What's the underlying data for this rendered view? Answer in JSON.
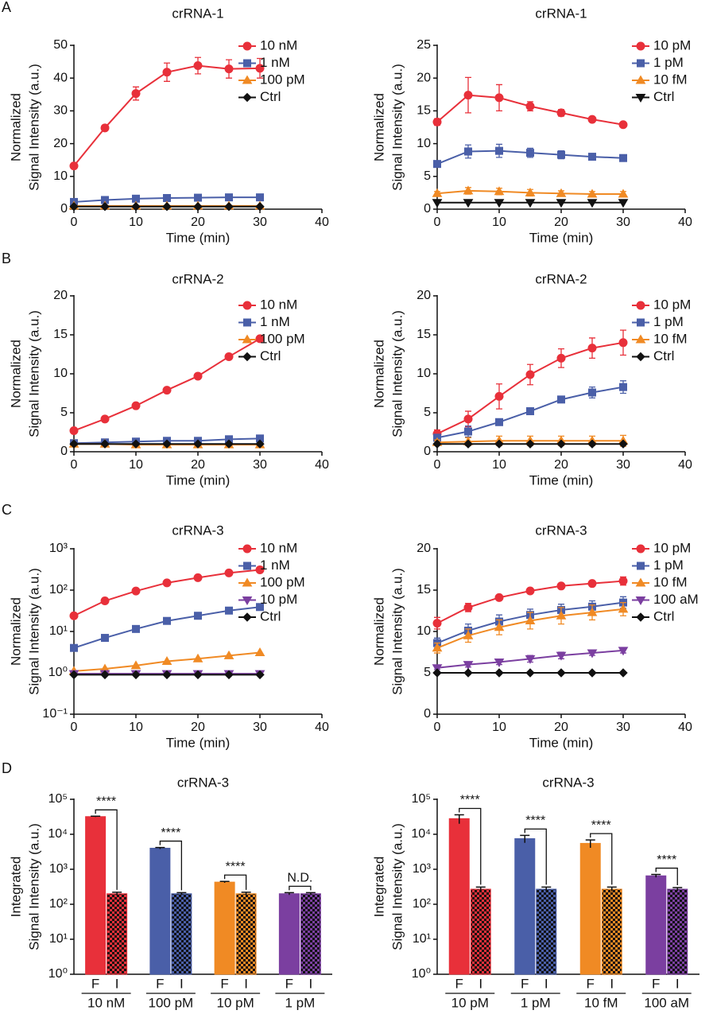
{
  "chart_data": [
    {
      "panel": "A",
      "type": "line",
      "title": "crRNA-1",
      "ylabel": [
        "Normalized",
        "Signal Intensity (a.u.)"
      ],
      "xlabel": "Time (min)",
      "x": [
        0,
        5,
        10,
        15,
        20,
        25,
        30
      ],
      "xlim": [
        0,
        40
      ],
      "xticks": [
        0,
        10,
        20,
        30,
        40
      ],
      "ylim": [
        0,
        50
      ],
      "yticks": [
        0,
        10,
        20,
        30,
        40,
        50
      ],
      "legend": "upper right",
      "series": [
        {
          "name": "10 nM",
          "color": "#e8303a",
          "marker": "circle",
          "values": [
            13.2,
            24.8,
            35.3,
            41.8,
            43.8,
            42.8,
            43.0
          ],
          "errors": [
            0.5,
            0.5,
            2,
            2.8,
            2.5,
            2.8,
            3
          ]
        },
        {
          "name": "1 nM",
          "color": "#4a5fa8",
          "marker": "square",
          "values": [
            2.2,
            2.8,
            3.2,
            3.4,
            3.5,
            3.6,
            3.6
          ]
        },
        {
          "name": "100 pM",
          "color": "#f08a24",
          "marker": "triangle",
          "values": [
            1.0,
            1.0,
            1.0,
            1.0,
            1.0,
            1.0,
            1.0
          ]
        },
        {
          "name": "Ctrl",
          "color": "#111111",
          "marker": "diamond",
          "values": [
            0.8,
            0.8,
            0.8,
            0.8,
            0.8,
            0.8,
            0.8
          ]
        }
      ]
    },
    {
      "type": "line",
      "title": "crRNA-1",
      "ylabel": [
        "Normalized",
        "Signal Intensity (a.u.)"
      ],
      "xlabel": "Time (min)",
      "x": [
        0,
        5,
        10,
        15,
        20,
        25,
        30
      ],
      "xlim": [
        0,
        40
      ],
      "xticks": [
        0,
        10,
        20,
        30,
        40
      ],
      "ylim": [
        0,
        25
      ],
      "yticks": [
        0,
        5,
        10,
        15,
        20,
        25
      ],
      "legend": "upper right",
      "series": [
        {
          "name": "10 pM",
          "color": "#e8303a",
          "marker": "circle",
          "values": [
            13.3,
            17.4,
            17.0,
            15.7,
            14.7,
            13.7,
            12.9
          ],
          "errors": [
            0.5,
            2.7,
            2,
            0.7,
            0.5,
            0.3,
            0.3
          ]
        },
        {
          "name": "1 pM",
          "color": "#4a5fa8",
          "marker": "square",
          "values": [
            6.9,
            8.8,
            8.9,
            8.6,
            8.3,
            8.0,
            7.8
          ],
          "errors": [
            0.3,
            1,
            1,
            0.7,
            0.6,
            0.4,
            0.4
          ]
        },
        {
          "name": "10 fM",
          "color": "#f08a24",
          "marker": "triangle",
          "values": [
            2.4,
            2.8,
            2.7,
            2.5,
            2.4,
            2.3,
            2.3
          ],
          "errors": [
            0.3,
            0.5,
            0.5,
            0.5,
            0.4,
            0.4,
            0.4
          ]
        },
        {
          "name": "Ctrl",
          "color": "#111111",
          "marker": "triangle-down",
          "values": [
            1.0,
            1.0,
            1.0,
            1.0,
            1.0,
            1.0,
            1.0
          ]
        }
      ]
    },
    {
      "panel": "B",
      "type": "line",
      "title": "crRNA-2",
      "ylabel": [
        "Normalized",
        "Signal Intensity (a.u.)"
      ],
      "xlabel": "Time (min)",
      "x": [
        0,
        5,
        10,
        15,
        20,
        25,
        30
      ],
      "xlim": [
        0,
        40
      ],
      "xticks": [
        0,
        10,
        20,
        30,
        40
      ],
      "ylim": [
        0,
        20
      ],
      "yticks": [
        0,
        5,
        10,
        15,
        20
      ],
      "legend": "upper right",
      "series": [
        {
          "name": "10 nM",
          "color": "#e8303a",
          "marker": "circle",
          "values": [
            2.7,
            4.2,
            5.9,
            7.9,
            9.7,
            12.2,
            14.5
          ]
        },
        {
          "name": "1 nM",
          "color": "#4a5fa8",
          "marker": "square",
          "values": [
            1.1,
            1.2,
            1.3,
            1.4,
            1.4,
            1.6,
            1.7
          ]
        },
        {
          "name": "100 pM",
          "color": "#f08a24",
          "marker": "triangle",
          "values": [
            1.0,
            1.0,
            0.9,
            0.9,
            0.9,
            0.9,
            0.9
          ]
        },
        {
          "name": "Ctrl",
          "color": "#111111",
          "marker": "diamond",
          "values": [
            1.0,
            1.0,
            1.0,
            1.0,
            1.0,
            1.0,
            1.0
          ]
        }
      ]
    },
    {
      "type": "line",
      "title": "crRNA-2",
      "ylabel": [
        "Normalized",
        "Signal Intensity (a.u.)"
      ],
      "xlabel": "Time (min)",
      "x": [
        0,
        5,
        10,
        15,
        20,
        25,
        30
      ],
      "xlim": [
        0,
        40
      ],
      "xticks": [
        0,
        10,
        20,
        30,
        40
      ],
      "ylim": [
        0,
        20
      ],
      "yticks": [
        0,
        5,
        10,
        15,
        20
      ],
      "legend": "upper right",
      "series": [
        {
          "name": "10 pM",
          "color": "#e8303a",
          "marker": "circle",
          "values": [
            2.3,
            4.2,
            7.1,
            9.9,
            12.0,
            13.3,
            14.0
          ],
          "errors": [
            0.5,
            1,
            1.6,
            1.3,
            1.2,
            1.3,
            1.6
          ]
        },
        {
          "name": "1 pM",
          "color": "#4a5fa8",
          "marker": "square",
          "values": [
            1.8,
            2.6,
            3.8,
            5.2,
            6.7,
            7.6,
            8.3
          ],
          "errors": [
            0.3,
            0.7,
            0.3,
            0.3,
            0.3,
            0.7,
            0.8
          ]
        },
        {
          "name": "10 fM",
          "color": "#f08a24",
          "marker": "triangle",
          "values": [
            1.2,
            1.3,
            1.4,
            1.4,
            1.4,
            1.4,
            1.4
          ],
          "errors": [
            0.3,
            0.5,
            0.6,
            0.6,
            0.6,
            0.6,
            0.7
          ]
        },
        {
          "name": "Ctrl",
          "color": "#111111",
          "marker": "diamond",
          "values": [
            1.0,
            1.0,
            1.0,
            1.0,
            1.0,
            1.0,
            1.0
          ]
        }
      ]
    },
    {
      "panel": "C",
      "type": "line",
      "title": "crRNA-3",
      "ylabel": [
        "Normalized",
        "Signal Intensity (a.u.)"
      ],
      "xlabel": "Time (min)",
      "yscale": "log",
      "x": [
        0,
        5,
        10,
        15,
        20,
        25,
        30
      ],
      "xlim": [
        0,
        40
      ],
      "xticks": [
        0,
        10,
        20,
        30,
        40
      ],
      "ylim": [
        0.1,
        1000
      ],
      "yticks": [
        {
          "value": 0.1,
          "label": "10⁻¹"
        },
        {
          "value": 1,
          "label": "10⁰"
        },
        {
          "value": 10,
          "label": "10¹"
        },
        {
          "value": 100,
          "label": "10²"
        },
        {
          "value": 1000,
          "label": "10³"
        }
      ],
      "legend": "upper right",
      "series": [
        {
          "name": "10 nM",
          "color": "#e8303a",
          "marker": "circle",
          "values": [
            24,
            55,
            95,
            150,
            200,
            260,
            310
          ]
        },
        {
          "name": "1 nM",
          "color": "#4a5fa8",
          "marker": "square",
          "values": [
            4,
            7,
            11.5,
            18,
            24,
            32,
            39
          ]
        },
        {
          "name": "100 pM",
          "color": "#f08a24",
          "marker": "triangle",
          "values": [
            1.1,
            1.25,
            1.5,
            1.9,
            2.2,
            2.6,
            3.1
          ]
        },
        {
          "name": "10 pM",
          "color": "#7b3fa0",
          "marker": "triangle-down",
          "values": [
            0.95,
            0.95,
            0.95,
            0.95,
            0.95,
            0.95,
            0.95
          ]
        },
        {
          "name": "Ctrl",
          "color": "#111111",
          "marker": "diamond",
          "values": [
            0.9,
            0.9,
            0.9,
            0.9,
            0.9,
            0.9,
            0.9
          ]
        }
      ]
    },
    {
      "type": "line",
      "title": "crRNA-3",
      "ylabel": [
        "Normalized",
        "Signal Intensity (a.u.)"
      ],
      "xlabel": "Time (min)",
      "x": [
        0,
        5,
        10,
        15,
        20,
        25,
        30
      ],
      "xlim": [
        0,
        40
      ],
      "xticks": [
        0,
        10,
        20,
        30,
        40
      ],
      "ylim": [
        0,
        20
      ],
      "yticks": [
        0,
        5,
        10,
        15,
        20
      ],
      "legend": "upper right",
      "series": [
        {
          "name": "10 pM",
          "color": "#e8303a",
          "marker": "circle",
          "values": [
            11,
            12.9,
            14.1,
            14.9,
            15.5,
            15.8,
            16.1
          ],
          "errors": [
            0.7,
            0.5,
            0.3,
            0.3,
            0.3,
            0.3,
            0.5
          ]
        },
        {
          "name": "1 pM",
          "color": "#4a5fa8",
          "marker": "square",
          "values": [
            8.6,
            10.1,
            11.2,
            12.0,
            12.6,
            13.0,
            13.5
          ],
          "errors": [
            0.6,
            0.8,
            0.8,
            0.7,
            0.7,
            0.7,
            0.7
          ]
        },
        {
          "name": "10 fM",
          "color": "#f08a24",
          "marker": "triangle",
          "values": [
            8.0,
            9.5,
            10.5,
            11.3,
            11.9,
            12.3,
            12.7
          ],
          "errors": [
            0.6,
            0.8,
            0.9,
            1,
            1,
            0.9,
            0.8
          ]
        },
        {
          "name": "100 aM",
          "color": "#7b3fa0",
          "marker": "triangle-down",
          "values": [
            5.6,
            6.0,
            6.3,
            6.7,
            7.1,
            7.4,
            7.7
          ],
          "errors": [
            0.2,
            0.3,
            0.3,
            0.4,
            0.4,
            0.3,
            0.3
          ]
        },
        {
          "name": "Ctrl",
          "color": "#111111",
          "marker": "diamond",
          "values": [
            5,
            5,
            5,
            5,
            5,
            5,
            5
          ]
        }
      ]
    },
    {
      "panel": "D",
      "type": "bar",
      "title": "crRNA-3",
      "ylabel": [
        "Integrated",
        "Signal Intensity (a.u.)"
      ],
      "yscale": "log",
      "ylim": [
        1,
        100000
      ],
      "yticks": [
        {
          "value": 1,
          "label": "10⁰"
        },
        {
          "value": 10,
          "label": "10¹"
        },
        {
          "value": 100,
          "label": "10²"
        },
        {
          "value": 1000,
          "label": "10³"
        },
        {
          "value": 10000,
          "label": "10⁴"
        },
        {
          "value": 100000,
          "label": "10⁵"
        }
      ],
      "categories": [
        "10 nM",
        "100 pM",
        "10 pM",
        "1 pM"
      ],
      "colors": [
        "#e8303a",
        "#4a5fa8",
        "#f08a24",
        "#7b3fa0"
      ],
      "series": [
        {
          "name": "F",
          "values": [
            32000,
            4000,
            430,
            200
          ],
          "errors": [
            800,
            200,
            20,
            15
          ]
        },
        {
          "name": "I",
          "pattern": "checker",
          "values": [
            200,
            200,
            200,
            200
          ],
          "errors": [
            20,
            15,
            20,
            15
          ]
        }
      ],
      "significance": [
        "****",
        "****",
        "****",
        "N.D."
      ]
    },
    {
      "type": "bar",
      "title": "crRNA-3",
      "ylabel": [
        "Integrated",
        "Signal Intensity (a.u.)"
      ],
      "yscale": "log",
      "ylim": [
        1,
        100000
      ],
      "yticks": [
        {
          "value": 1,
          "label": "10⁰"
        },
        {
          "value": 10,
          "label": "10¹"
        },
        {
          "value": 100,
          "label": "10²"
        },
        {
          "value": 1000,
          "label": "10³"
        },
        {
          "value": 10000,
          "label": "10⁴"
        },
        {
          "value": 100000,
          "label": "10⁵"
        }
      ],
      "categories": [
        "10 pM",
        "1 pM",
        "10 fM",
        "100 aM"
      ],
      "colors": [
        "#e8303a",
        "#4a5fa8",
        "#f08a24",
        "#7b3fa0"
      ],
      "series": [
        {
          "name": "F",
          "values": [
            28000,
            7500,
            5500,
            650
          ],
          "errors": [
            8000,
            1800,
            1400,
            60
          ]
        },
        {
          "name": "I",
          "pattern": "checker",
          "values": [
            270,
            270,
            270,
            270
          ],
          "errors": [
            40,
            40,
            40,
            30
          ]
        }
      ],
      "significance": [
        "****",
        "****",
        "****",
        "****"
      ]
    }
  ]
}
